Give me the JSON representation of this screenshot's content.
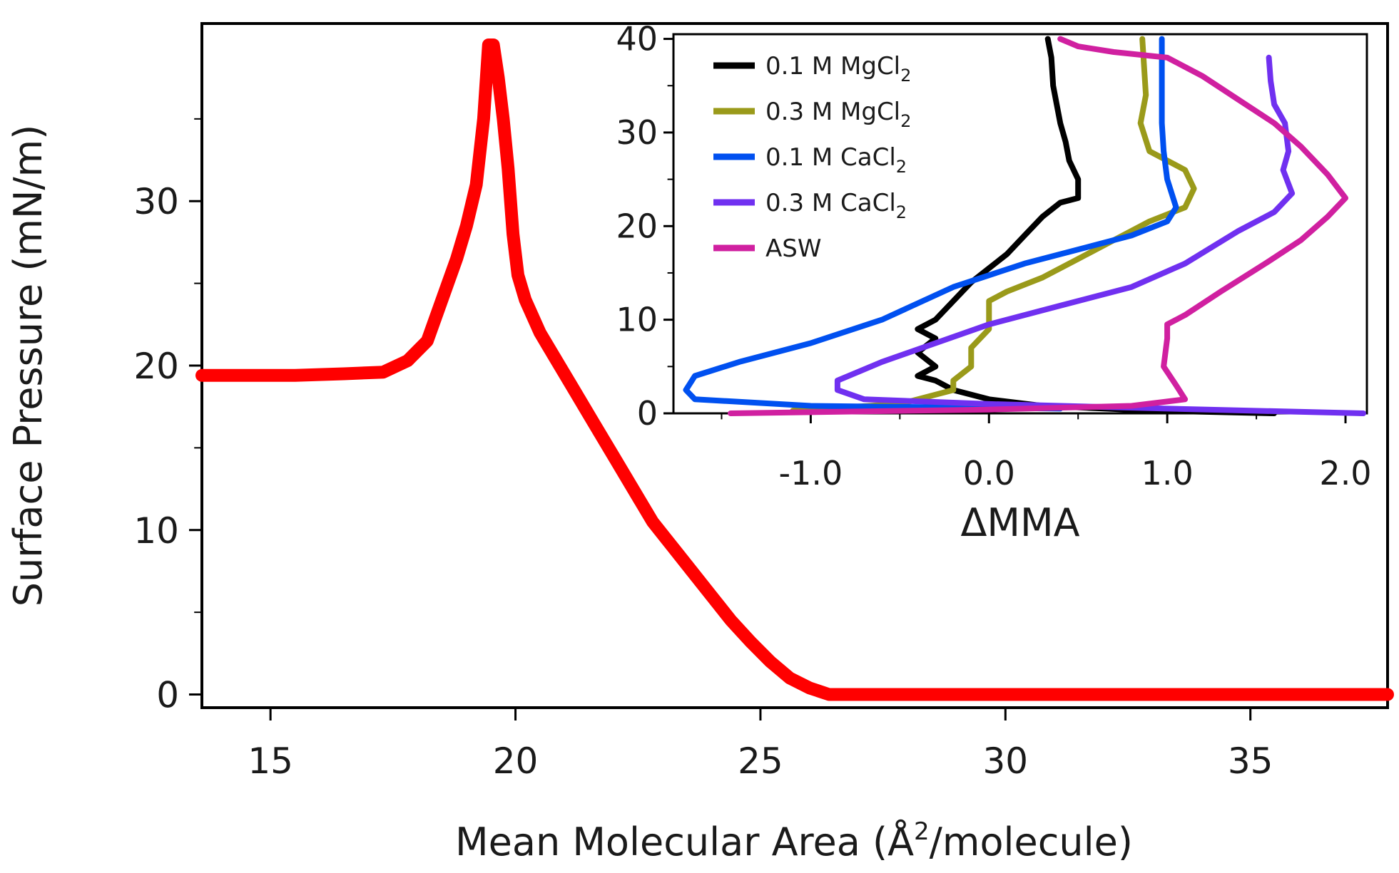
{
  "chart_data": [
    {
      "type": "line",
      "xlabel_parts": {
        "pre": "Mean Molecular Area (Å",
        "sup": "2",
        "post": "/molecule)"
      },
      "ylabel": "Surface Pressure (mN/m)",
      "xlim": [
        13.6,
        37.8
      ],
      "ylim": [
        -0.8,
        40.8
      ],
      "xticks": [
        15,
        20,
        25,
        30,
        35
      ],
      "yticks": [
        0,
        10,
        20,
        30
      ],
      "grid": false,
      "series": [
        {
          "color": "#ff0000",
          "x": [
            13.6,
            14.5,
            15.5,
            16.5,
            17.3,
            17.8,
            18.2,
            18.5,
            18.8,
            19.0,
            19.2,
            19.35,
            19.45,
            19.55,
            19.65,
            19.75,
            19.85,
            19.95,
            20.05,
            20.2,
            20.5,
            20.8,
            21.2,
            21.6,
            22.0,
            22.4,
            22.8,
            23.2,
            23.6,
            24.0,
            24.4,
            24.8,
            25.2,
            25.6,
            26.0,
            26.4,
            27.0,
            30.0,
            33.0,
            36.0,
            37.8
          ],
          "y": [
            19.4,
            19.4,
            19.4,
            19.5,
            19.6,
            20.3,
            21.5,
            24.0,
            26.5,
            28.5,
            31.0,
            35.0,
            39.5,
            39.5,
            37.5,
            35.0,
            32.0,
            28.0,
            25.5,
            24.0,
            22.0,
            20.5,
            18.5,
            16.5,
            14.5,
            12.5,
            10.5,
            9.0,
            7.5,
            6.0,
            4.5,
            3.2,
            2.0,
            1.0,
            0.4,
            0.0,
            0.0,
            0.0,
            0.0,
            0.0,
            0.0
          ]
        }
      ]
    },
    {
      "type": "line",
      "xlabel": "ΔMMA",
      "ylabel": "",
      "xlim": [
        -1.77,
        2.12
      ],
      "ylim": [
        0,
        40.5
      ],
      "xticks": [
        -1.0,
        0.0,
        1.0,
        2.0
      ],
      "xtick_labels": [
        "-1.0",
        "0.0",
        "1.0",
        "2.0"
      ],
      "yticks": [
        0,
        10,
        20,
        30,
        40
      ],
      "grid": false,
      "legend_position": "top-left",
      "series": [
        {
          "name_main": "0.1 M MgCl",
          "name_sub": "2",
          "color": "#000000",
          "x": [
            1.6,
            0.9,
            0.3,
            0.0,
            -0.2,
            -0.3,
            -0.4,
            -0.3,
            -0.4,
            -0.3,
            -0.4,
            -0.3,
            -0.2,
            -0.1,
            0.0,
            0.1,
            0.2,
            0.3,
            0.4,
            0.5,
            0.5,
            0.45,
            0.43,
            0.4,
            0.38,
            0.36,
            0.35,
            0.33
          ],
          "y": [
            0,
            0.3,
            0.8,
            1.5,
            2.5,
            3.5,
            4.0,
            5.0,
            6.5,
            8.0,
            9.0,
            10.0,
            12.0,
            14.0,
            15.5,
            17.0,
            19.0,
            21.0,
            22.5,
            23.0,
            25.0,
            27.0,
            29.0,
            31.0,
            33.0,
            35.0,
            38.0,
            40.0
          ]
        },
        {
          "name_main": "0.3 M MgCl",
          "name_sub": "2",
          "color": "#9a9a1a",
          "x": [
            -1.1,
            -0.5,
            -0.2,
            -0.2,
            -0.1,
            -0.1,
            0.0,
            0.0,
            0.1,
            0.3,
            0.5,
            0.7,
            0.9,
            1.1,
            1.15,
            1.1,
            0.9,
            0.85,
            0.88,
            0.87,
            0.86
          ],
          "y": [
            0.3,
            1.0,
            2.5,
            3.5,
            5.0,
            7.0,
            9.0,
            12.0,
            13.0,
            14.5,
            16.5,
            18.5,
            20.5,
            22.0,
            24.0,
            26.0,
            28.0,
            31.0,
            34.0,
            37.0,
            40.0
          ]
        },
        {
          "name_main": "0.1 M CaCl",
          "name_sub": "2",
          "color": "#0050f0",
          "x": [
            0.4,
            -1.0,
            -1.65,
            -1.7,
            -1.65,
            -1.4,
            -1.0,
            -0.6,
            -0.2,
            0.2,
            0.5,
            0.8,
            1.0,
            1.05,
            1.0,
            0.98,
            0.97,
            0.97,
            0.97
          ],
          "y": [
            0.5,
            0.8,
            1.5,
            2.5,
            4.0,
            5.5,
            7.5,
            10.0,
            13.5,
            16.0,
            17.5,
            19.0,
            20.5,
            22.0,
            25.0,
            28.0,
            31.0,
            35.0,
            40.0
          ]
        },
        {
          "name_main": "0.3 M CaCl",
          "name_sub": "2",
          "color": "#7030f0",
          "x": [
            2.1,
            1.0,
            0.0,
            -0.7,
            -0.85,
            -0.85,
            -0.6,
            -0.3,
            0.0,
            0.4,
            0.8,
            1.1,
            1.4,
            1.6,
            1.7,
            1.65,
            1.68,
            1.66,
            1.6,
            1.58,
            1.57
          ],
          "y": [
            0,
            0.5,
            1.0,
            1.5,
            2.5,
            3.5,
            5.5,
            7.5,
            9.5,
            11.5,
            13.5,
            16.0,
            19.5,
            21.5,
            23.5,
            26.0,
            28.0,
            31.0,
            33.0,
            35.5,
            38.0
          ]
        },
        {
          "name": "ASW",
          "color": "#d020a0",
          "x": [
            -1.45,
            0.0,
            0.8,
            1.1,
            1.05,
            0.98,
            1.0,
            1.0,
            1.1,
            1.3,
            1.55,
            1.75,
            1.9,
            2.0,
            1.9,
            1.75,
            1.6,
            1.4,
            1.2,
            1.0,
            0.7,
            0.5,
            0.4
          ],
          "y": [
            0,
            0.4,
            0.8,
            1.5,
            3.0,
            5.0,
            8.0,
            9.5,
            10.5,
            13.0,
            16.0,
            18.5,
            21.0,
            23.0,
            25.5,
            28.5,
            31.0,
            33.5,
            36.0,
            38.0,
            38.6,
            39.2,
            40.0
          ]
        }
      ]
    }
  ]
}
